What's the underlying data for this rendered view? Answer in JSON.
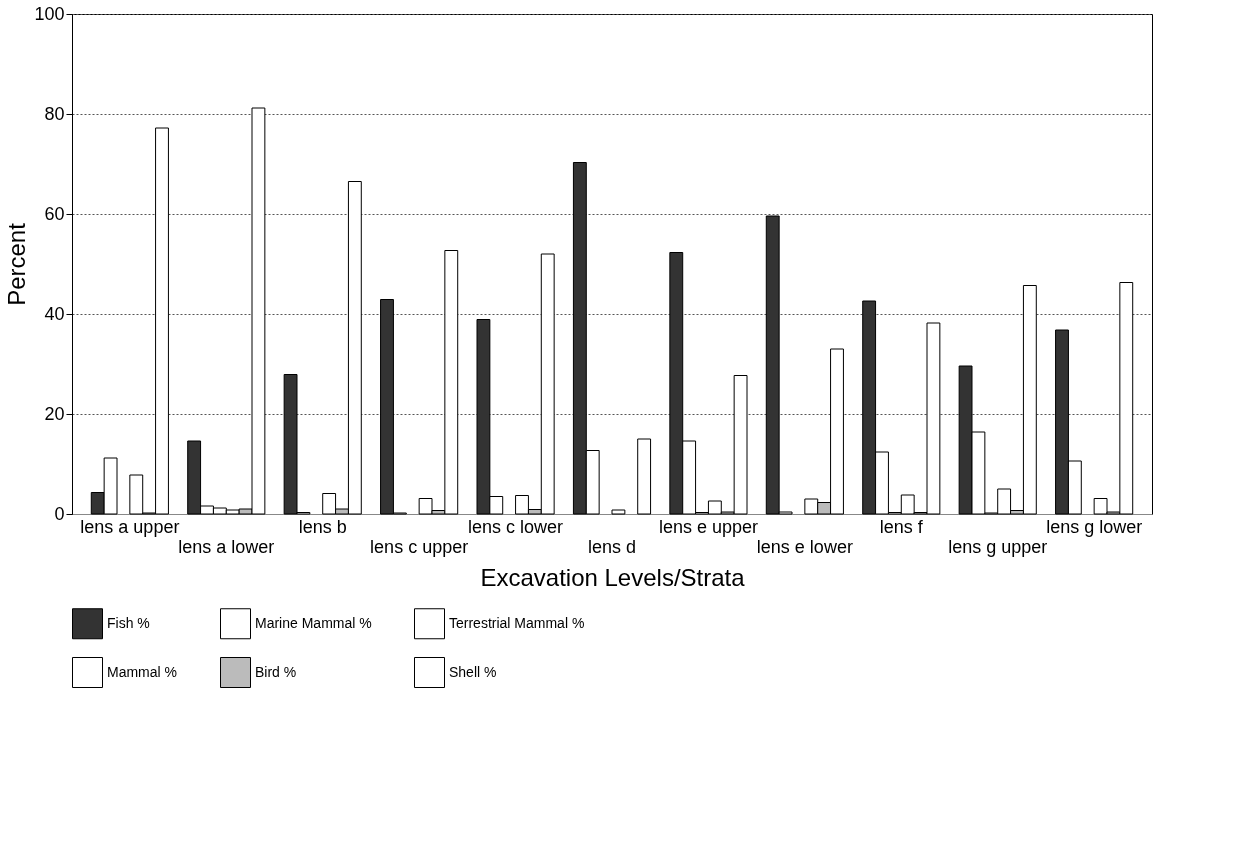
{
  "chart_data": {
    "type": "bar",
    "xlabel": "Excavation Levels/Strata",
    "ylabel": "Percent",
    "categories": [
      "lens a upper",
      "lens a lower",
      "lens b",
      "lens c upper",
      "lens c lower",
      "lens d",
      "lens e upper",
      "lens e lower",
      "lens f",
      "lens g upper",
      "lens g lower"
    ],
    "series": [
      {
        "name": "Fish %",
        "color": "#333333",
        "values": [
          4.3,
          14.6,
          27.9,
          42.9,
          38.9,
          70.3,
          52.3,
          59.6,
          42.6,
          29.6,
          36.8
        ]
      },
      {
        "name": "Marine Mammal %",
        "color": "#ffffff",
        "values": [
          11.2,
          1.6,
          0.3,
          0.2,
          3.5,
          12.7,
          14.6,
          0.4,
          12.4,
          16.4,
          10.6
        ]
      },
      {
        "name": "Terrestrial Mammal %",
        "color": "#ffffff",
        "values": [
          0,
          1.2,
          0,
          0,
          0,
          0,
          0.3,
          0,
          0.3,
          0.2,
          0
        ]
      },
      {
        "name": "Mammal %",
        "color": "#ffffff",
        "values": [
          7.8,
          0.8,
          4.1,
          3.1,
          3.7,
          0.8,
          2.6,
          3.0,
          3.8,
          5.0,
          3.1
        ]
      },
      {
        "name": "Bird %",
        "color": "#bbbbbb",
        "values": [
          0.2,
          1.0,
          1.0,
          0.7,
          0.9,
          0,
          0.4,
          2.3,
          0.3,
          0.7,
          0.4
        ]
      },
      {
        "name": "Shell %",
        "color": "#ffffff",
        "values": [
          77.2,
          81.2,
          66.5,
          52.7,
          52.0,
          15.0,
          27.7,
          33.0,
          38.2,
          45.7,
          46.3
        ]
      }
    ],
    "ylim": [
      0,
      100
    ],
    "yticks": [
      0,
      20,
      40,
      60,
      80,
      100
    ],
    "grid": "y",
    "legend": "bottom"
  }
}
